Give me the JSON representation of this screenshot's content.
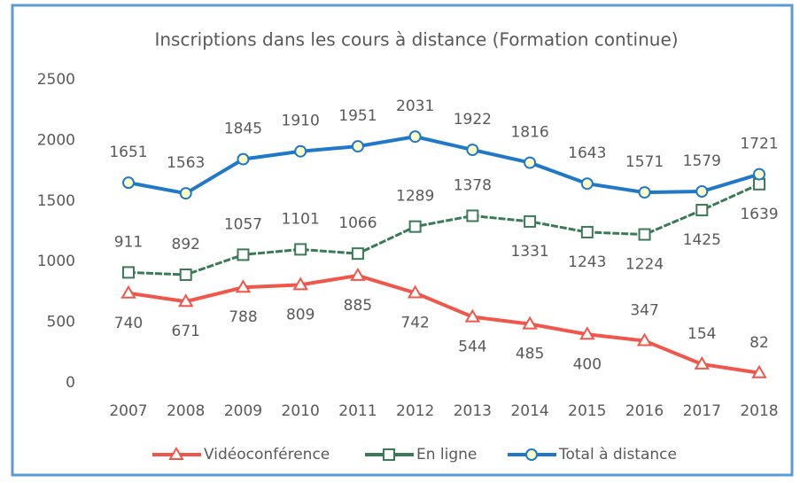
{
  "chart_data": {
    "type": "line",
    "title": "Inscriptions dans les cours à distance (Formation continue)",
    "categories": [
      "2007",
      "2008",
      "2009",
      "2010",
      "2011",
      "2012",
      "2013",
      "2014",
      "2015",
      "2016",
      "2017",
      "2018"
    ],
    "series": [
      {
        "name": "Vidéoconférence",
        "color": "#f0564a",
        "values": [
          740,
          671,
          788,
          809,
          885,
          742,
          544,
          485,
          400,
          347,
          154,
          82
        ]
      },
      {
        "name": "En ligne",
        "color": "#3a7a57",
        "values": [
          911,
          892,
          1057,
          1101,
          1066,
          1289,
          1378,
          1331,
          1243,
          1224,
          1425,
          1639
        ]
      },
      {
        "name": "Total à distance",
        "color": "#1f78c8",
        "values": [
          1651,
          1563,
          1845,
          1910,
          1951,
          2031,
          1922,
          1816,
          1643,
          1571,
          1579,
          1721
        ]
      }
    ],
    "ylim": [
      0,
      2500
    ],
    "yticks": [
      0,
      500,
      1000,
      1500,
      2000,
      2500
    ],
    "grid": false,
    "legend": "bottom"
  }
}
